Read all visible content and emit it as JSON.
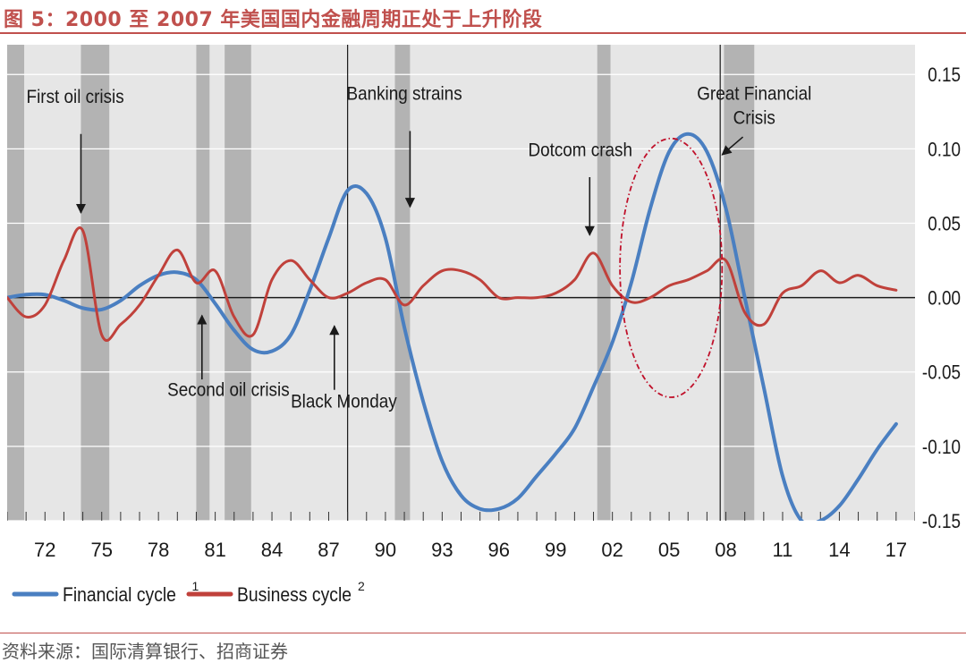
{
  "title": "图 5：2000 至 2007 年美国国内金融周期正处于上升阶段",
  "source": "资料来源：国际清算银行、招商证券",
  "chart_data": {
    "type": "line",
    "x_tick_labels": [
      "72",
      "75",
      "78",
      "81",
      "84",
      "87",
      "90",
      "93",
      "96",
      "99",
      "02",
      "05",
      "08",
      "11",
      "14",
      "17"
    ],
    "x_tick_years": [
      1972,
      1975,
      1978,
      1981,
      1984,
      1987,
      1990,
      1993,
      1996,
      1999,
      2002,
      2005,
      2008,
      2011,
      2014,
      2017
    ],
    "xlim": [
      1970,
      2018
    ],
    "y_tick_labels": [
      "0.15",
      "0.10",
      "0.05",
      "0.00",
      "-0.05",
      "-0.10",
      "-0.15"
    ],
    "y_tick_values": [
      0.15,
      0.1,
      0.05,
      0.0,
      -0.05,
      -0.1,
      -0.15
    ],
    "ylim": [
      -0.15,
      0.17
    ],
    "grid": "horizontal",
    "recession_bands": [
      [
        1970.0,
        1970.9
      ],
      [
        1973.9,
        1975.4
      ],
      [
        1980.0,
        1980.7
      ],
      [
        1981.5,
        1982.9
      ],
      [
        1990.5,
        1991.3
      ],
      [
        2001.2,
        2001.9
      ],
      [
        2007.9,
        2009.5
      ]
    ],
    "vertical_lines": [
      1988.0,
      2007.7
    ],
    "highlight_ellipse": {
      "center": [
        2005.1,
        0.02
      ],
      "half_width_years": 2.7,
      "half_height": 0.087,
      "color": "#c0102a"
    },
    "series": [
      {
        "name": "Financial cycle",
        "superscript": "1",
        "color": "#4a7fc1",
        "x": [
          1970,
          1971,
          1972,
          1973,
          1974,
          1975,
          1976,
          1977,
          1978,
          1979,
          1980,
          1981,
          1982,
          1983,
          1984,
          1985,
          1986,
          1987,
          1988,
          1989,
          1990,
          1991,
          1992,
          1993,
          1994,
          1995,
          1996,
          1997,
          1998,
          1999,
          2000,
          2001,
          2002,
          2003,
          2004,
          2005,
          2006,
          2007,
          2008,
          2009,
          2010,
          2011,
          2012,
          2013,
          2014,
          2015,
          2016,
          2017
        ],
        "values": [
          0.0,
          0.002,
          0.002,
          -0.002,
          -0.007,
          -0.008,
          -0.002,
          0.008,
          0.015,
          0.017,
          0.012,
          -0.004,
          -0.022,
          -0.035,
          -0.036,
          -0.025,
          0.005,
          0.04,
          0.072,
          0.07,
          0.04,
          -0.02,
          -0.07,
          -0.11,
          -0.133,
          -0.142,
          -0.142,
          -0.135,
          -0.12,
          -0.105,
          -0.088,
          -0.06,
          -0.03,
          0.01,
          0.06,
          0.098,
          0.11,
          0.098,
          0.06,
          0.0,
          -0.06,
          -0.12,
          -0.15,
          -0.15,
          -0.14,
          -0.122,
          -0.102,
          -0.085
        ]
      },
      {
        "name": "Business cycle",
        "superscript": "2",
        "color": "#c0413b",
        "x": [
          1970,
          1971,
          1972,
          1973,
          1974,
          1975,
          1976,
          1977,
          1978,
          1979,
          1980,
          1981,
          1982,
          1983,
          1984,
          1985,
          1986,
          1987,
          1988,
          1989,
          1990,
          1991,
          1992,
          1993,
          1994,
          1995,
          1996,
          1997,
          1998,
          1999,
          2000,
          2001,
          2002,
          2003,
          2004,
          2005,
          2006,
          2007,
          2008,
          2009,
          2010,
          2011,
          2012,
          2013,
          2014,
          2015,
          2016,
          2017
        ],
        "values": [
          0.0,
          -0.013,
          -0.005,
          0.025,
          0.045,
          -0.025,
          -0.018,
          -0.005,
          0.015,
          0.032,
          0.01,
          0.018,
          -0.013,
          -0.025,
          0.012,
          0.025,
          0.012,
          0.0,
          0.003,
          0.01,
          0.012,
          -0.005,
          0.008,
          0.018,
          0.018,
          0.012,
          0.0,
          0.0,
          0.0,
          0.003,
          0.012,
          0.03,
          0.008,
          -0.003,
          0.0,
          0.008,
          0.012,
          0.018,
          0.025,
          -0.01,
          -0.018,
          0.003,
          0.008,
          0.018,
          0.01,
          0.015,
          0.008,
          0.005
        ]
      }
    ],
    "annotations": [
      {
        "lines": [
          "First oil crisis"
        ],
        "x": 1973.6,
        "y": 0.131,
        "arrow": [
          [
            1973.9,
            0.11
          ],
          [
            1973.9,
            0.057
          ]
        ]
      },
      {
        "lines": [
          "Second oil crisis"
        ],
        "x": 1981.7,
        "y": -0.066,
        "arrow": [
          [
            1980.3,
            -0.055
          ],
          [
            1980.3,
            -0.012
          ]
        ]
      },
      {
        "lines": [
          "Black Monday"
        ],
        "x": 1987.8,
        "y": -0.074,
        "arrow": [
          [
            1987.3,
            -0.062
          ],
          [
            1987.3,
            -0.019
          ]
        ]
      },
      {
        "lines": [
          "Banking strains"
        ],
        "x": 1991.0,
        "y": 0.133,
        "arrow": [
          [
            1991.3,
            0.112
          ],
          [
            1991.3,
            0.061
          ]
        ]
      },
      {
        "lines": [
          "Dotcom crash"
        ],
        "x": 2000.3,
        "y": 0.095,
        "arrow": [
          [
            2000.8,
            0.081
          ],
          [
            2000.8,
            0.042
          ]
        ]
      },
      {
        "lines": [
          "Great Financial",
          "Crisis"
        ],
        "x": 2009.5,
        "y": 0.133,
        "arrow": [
          [
            2008.9,
            0.108
          ],
          [
            2007.8,
            0.096
          ]
        ]
      }
    ]
  }
}
